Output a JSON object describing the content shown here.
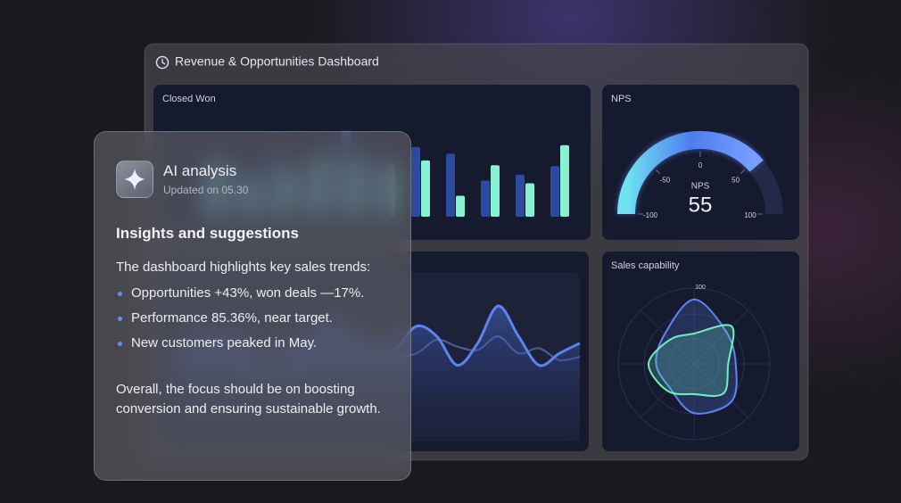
{
  "dashboard": {
    "title": "Revenue & Opportunities Dashboard",
    "closed_won": {
      "type": "bar",
      "title": "Closed Won",
      "ylim": [
        0,
        100
      ],
      "series": [
        {
          "color": "#2c4a9e",
          "values": [
            45,
            55,
            70,
            50,
            90,
            60,
            73,
            66,
            38,
            44,
            53
          ]
        },
        {
          "color": "#86f2d2",
          "values": [
            60,
            40,
            50,
            65,
            60,
            55,
            59,
            22,
            54,
            35,
            75
          ]
        }
      ]
    },
    "nps": {
      "type": "gauge",
      "title": "NPS",
      "label": "NPS",
      "value": 55,
      "color": "#4f7cf0",
      "xlim": [
        -100,
        100
      ],
      "xticks": [
        -100,
        -50,
        0,
        50,
        100
      ]
    },
    "trend": {
      "type": "area",
      "ylim": [
        0,
        100
      ],
      "series": [
        {
          "color": "#5b84f0",
          "values": [
            50,
            55,
            62,
            58,
            50,
            45,
            52,
            63,
            66,
            58,
            50,
            55,
            68,
            62,
            45,
            58,
            80,
            62,
            45,
            52,
            58
          ]
        },
        {
          "color": "#4d5f9c",
          "values": [
            48,
            52,
            50,
            47,
            52,
            56,
            50,
            46,
            50,
            55,
            52,
            50,
            52,
            60,
            56,
            54,
            62,
            52,
            55,
            48,
            50
          ]
        }
      ]
    },
    "sales_capability": {
      "type": "radar",
      "title": "Sales capability",
      "rlim": [
        0,
        100
      ],
      "rticks": [
        100
      ],
      "series": [
        {
          "color": "#5d86f2",
          "values": [
            85,
            60,
            55,
            70,
            65,
            45,
            50,
            55
          ]
        },
        {
          "color": "#6ff0c4",
          "values": [
            40,
            70,
            45,
            55,
            40,
            50,
            60,
            45
          ]
        }
      ]
    }
  },
  "ai_card": {
    "title": "AI analysis",
    "updated": "Updated on 05.30",
    "heading": "Insights and suggestions",
    "intro": "The dashboard highlights key sales trends:",
    "bullets": [
      "Opportunities +43%, won deals —17%.",
      "Performance 85.36%, near target.",
      "New customers peaked in May."
    ],
    "conclusion": "Overall, the focus should be on boosting conversion and ensuring sustainable growth."
  }
}
